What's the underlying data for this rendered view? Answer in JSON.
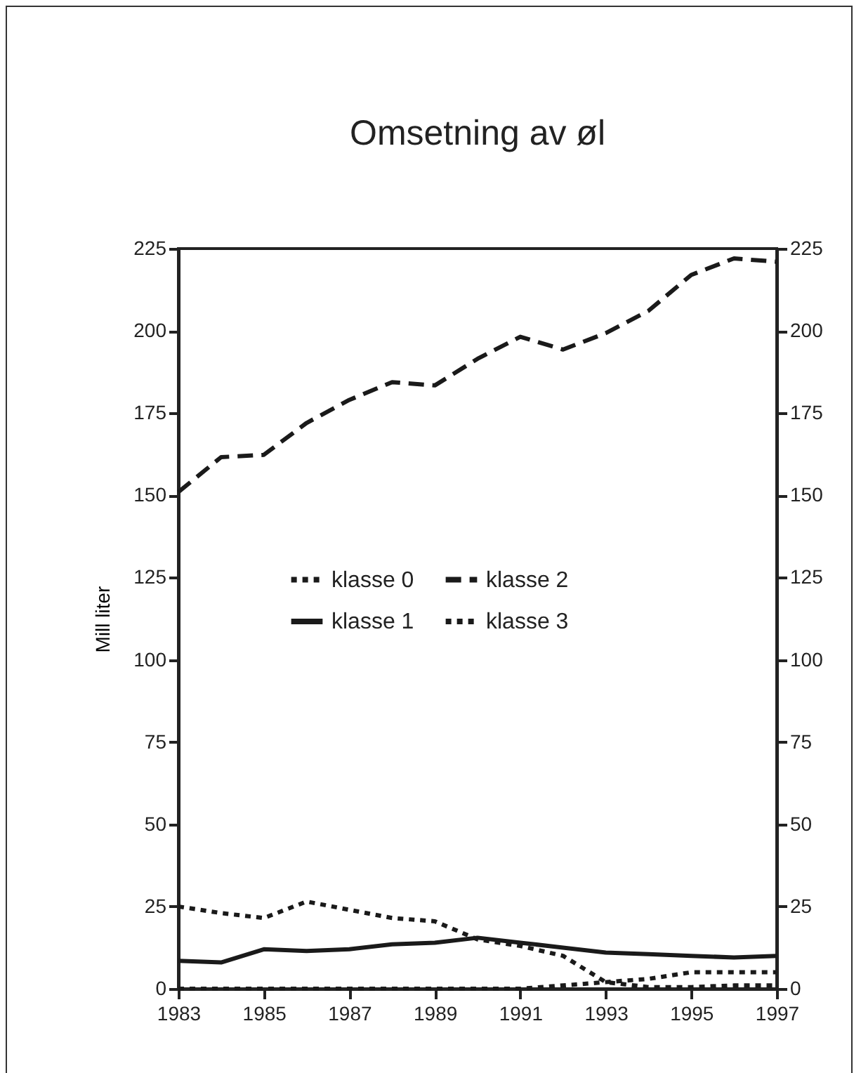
{
  "chart_data": {
    "type": "line",
    "title": "Omsetning av øl",
    "ylabel": "Mill liter",
    "x": [
      1983,
      1984,
      1985,
      1986,
      1987,
      1988,
      1989,
      1990,
      1991,
      1992,
      1993,
      1994,
      1995,
      1996,
      1997
    ],
    "xlim": [
      1983,
      1997
    ],
    "xticks": [
      1983,
      1985,
      1987,
      1989,
      1991,
      1993,
      1995,
      1997
    ],
    "ylim": [
      0,
      225
    ],
    "yticks": [
      0,
      25,
      50,
      75,
      100,
      125,
      150,
      175,
      200,
      225
    ],
    "y2lim": [
      0,
      225
    ],
    "y2ticks": [
      0,
      25,
      50,
      75,
      100,
      125,
      150,
      175,
      200,
      225
    ],
    "grid": false,
    "legend": "left",
    "marker": "none",
    "series": [
      {
        "name": "klasse 0",
        "color": "#1a1a1a",
        "line_style": "dotted",
        "values": [
          0,
          0,
          0,
          0,
          0,
          0,
          0,
          0,
          0,
          1,
          2,
          3,
          5,
          5,
          5
        ]
      },
      {
        "name": "klasse 1",
        "color": "#1a1a1a",
        "line_style": "solid",
        "values": [
          8.5,
          8,
          12,
          11.5,
          12,
          13.5,
          14,
          15.5,
          14,
          12.5,
          11,
          10.5,
          10,
          9.5,
          10
        ]
      },
      {
        "name": "klasse 2",
        "color": "#1a1a1a",
        "line_style": "dashed",
        "values": [
          151,
          161.6,
          162.3,
          172,
          179,
          184.4,
          183.4,
          191.5,
          198.2,
          194.3,
          199.3,
          206.1,
          217,
          222,
          221
        ]
      },
      {
        "name": "klasse 3",
        "color": "#1a1a1a",
        "line_style": "dotted",
        "values": [
          25,
          23,
          21.5,
          26.5,
          24,
          21.5,
          20.5,
          15,
          13,
          10,
          2,
          0.5,
          0.5,
          1,
          1
        ]
      }
    ]
  }
}
